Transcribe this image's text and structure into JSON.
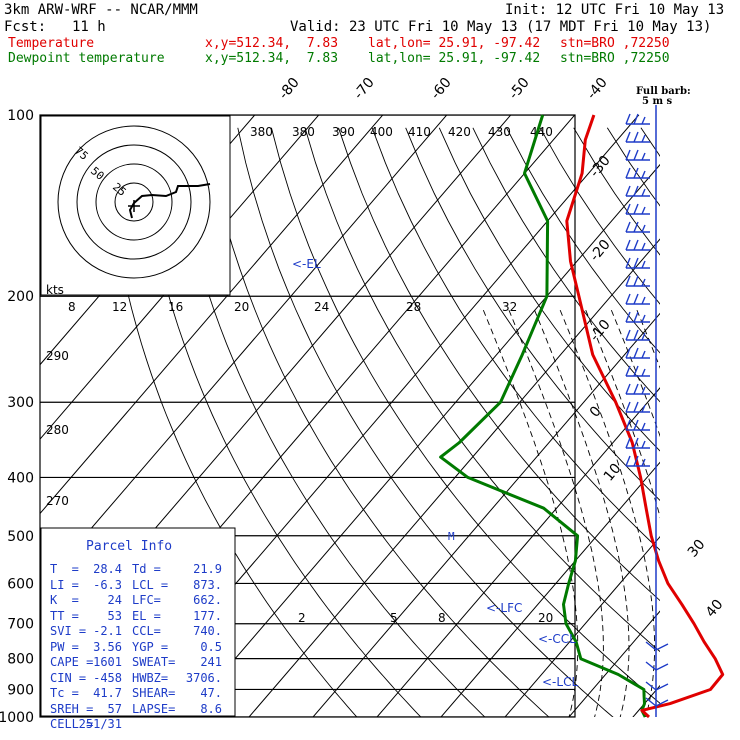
{
  "header": {
    "title": "3km ARW-WRF -- NCAR/MMM",
    "init": "Init: 12 UTC Fri 10 May 13",
    "fcst_label": "Fcst:",
    "fcst_value": "11 h",
    "valid": "Valid: 23 UTC Fri 10 May 13 (17 MDT Fri 10 May 13)",
    "temp_line": {
      "name": "Temperature",
      "xy": "x,y=512.34,  7.83",
      "latlon": "lat,lon= 25.91, -97.42",
      "stn": "stn=BRO ,72250"
    },
    "dew_line": {
      "name": "Dewpoint temperature",
      "xy": "x,y=512.34,  7.83",
      "latlon": "lat,lon= 25.91, -97.42",
      "stn": "stn=BRO ,72250"
    }
  },
  "colors": {
    "temperature": "#e00000",
    "dewpoint": "#007a00",
    "annot": "#1e3cc8",
    "grid": "#000000"
  },
  "chart_data": {
    "type": "line",
    "title": "",
    "ylabel_ticks": [
      "100",
      "200",
      "300",
      "400",
      "500",
      "600",
      "700",
      "800",
      "900",
      "1000"
    ],
    "y_log_scale": true,
    "ylim": [
      1000,
      100
    ],
    "isotherm_top_labels": [
      "-80",
      "-70",
      "-60",
      "-50",
      "-40"
    ],
    "isotherm_right_labels": [
      "-30",
      "-20",
      "-10",
      "0",
      "10",
      "30",
      "40"
    ],
    "theta_labels": [
      "380",
      "380",
      "390",
      "400",
      "410",
      "420",
      "430",
      "440"
    ],
    "mixing_ratio_labels": [
      "2",
      "5",
      "8",
      "20"
    ],
    "theta_left_labels": [
      "290",
      "280",
      "270"
    ],
    "series": [
      {
        "name": "Temperature",
        "points": [
          [
            1000,
            22.5
          ],
          [
            975,
            20.5
          ],
          [
            950,
            24.0
          ],
          [
            900,
            28.4
          ],
          [
            850,
            28.3
          ],
          [
            800,
            25.0
          ],
          [
            750,
            21.0
          ],
          [
            700,
            17.0
          ],
          [
            650,
            12.5
          ],
          [
            600,
            7.5
          ],
          [
            550,
            3.0
          ],
          [
            500,
            -1.5
          ],
          [
            450,
            -6.0
          ],
          [
            400,
            -11.0
          ],
          [
            350,
            -17.0
          ],
          [
            300,
            -25.0
          ],
          [
            250,
            -35.0
          ],
          [
            200,
            -45.0
          ],
          [
            175,
            -51.0
          ],
          [
            150,
            -57.0
          ],
          [
            125,
            -61.0
          ],
          [
            110,
            -65.0
          ],
          [
            100,
            -67.0
          ]
        ]
      },
      {
        "name": "Dewpoint temperature",
        "points": [
          [
            1000,
            21.9
          ],
          [
            975,
            20.5
          ],
          [
            950,
            20.0
          ],
          [
            925,
            19.0
          ],
          [
            900,
            18.0
          ],
          [
            850,
            12.0
          ],
          [
            800,
            4.0
          ],
          [
            750,
            1.0
          ],
          [
            700,
            -3.0
          ],
          [
            650,
            -6.0
          ],
          [
            600,
            -8.0
          ],
          [
            550,
            -10.0
          ],
          [
            500,
            -13.0
          ],
          [
            450,
            -22.0
          ],
          [
            400,
            -38.0
          ],
          [
            370,
            -45.0
          ],
          [
            350,
            -44.0
          ],
          [
            300,
            -43.0
          ],
          [
            250,
            -46.0
          ],
          [
            200,
            -50.0
          ],
          [
            150,
            -60.0
          ],
          [
            125,
            -70.0
          ],
          [
            100,
            -75.0
          ]
        ]
      }
    ],
    "level_markers": [
      "<-EL",
      "<-LFC",
      "<-CCL",
      "<-LCL"
    ],
    "wind_scale_label": [
      "Full barb:",
      "5 m s"
    ],
    "hodograph": {
      "unit_label": "kts",
      "axis_labels": [
        "8",
        "12",
        "16",
        "20",
        "24",
        "28",
        "32"
      ],
      "ring_labels": [
        "75",
        "50",
        "25"
      ]
    }
  },
  "parcel_info": {
    "title": "Parcel Info",
    "rows": [
      [
        "T  =",
        "28.4",
        "Td =",
        "21.9"
      ],
      [
        "LI =",
        "-6.3",
        "LCL =",
        "873."
      ],
      [
        "K  =",
        "24",
        "LFC=",
        "662."
      ],
      [
        "TT =",
        "53",
        "EL =",
        "177."
      ],
      [
        "SVI =",
        "-2.1",
        "CCL=",
        "740."
      ],
      [
        "PW =",
        "3.56",
        "YGP =",
        "0.5"
      ],
      [
        "CAPE =",
        "1601",
        "SWEAT=",
        "241"
      ],
      [
        "CIN =",
        "-458",
        "HWBZ=",
        "3706."
      ],
      [
        "Tc =",
        "41.7",
        "SHEAR=",
        "47."
      ],
      [
        "SREH =",
        "57",
        "LAPSE=",
        "8.6"
      ],
      [
        "CELL =",
        "251/31",
        "",
        ""
      ]
    ]
  }
}
